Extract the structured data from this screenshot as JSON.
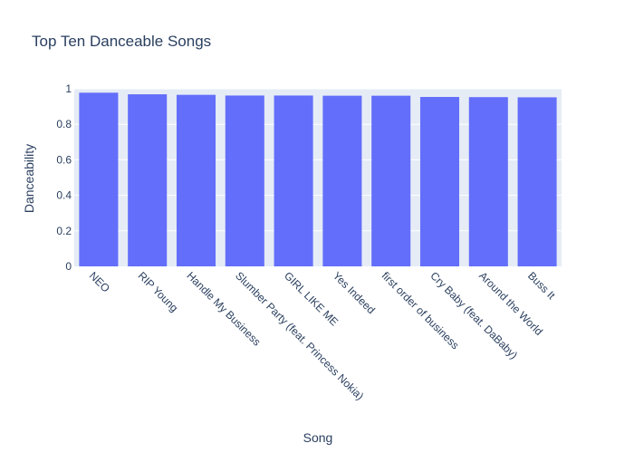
{
  "chart_data": {
    "type": "bar",
    "title": "Top Ten Danceable Songs",
    "xlabel": "Song",
    "ylabel": "Danceability",
    "ylim": [
      0,
      1
    ],
    "yticks": [
      0,
      0.2,
      0.4,
      0.6,
      0.8,
      1
    ],
    "ytick_labels": [
      "0",
      "0.2",
      "0.4",
      "0.6",
      "0.8",
      "1"
    ],
    "grid": true,
    "categories": [
      "NEO",
      "RIP Young",
      "Handle My Business",
      "Slumber Party (feat. Princess Nokia)",
      "GIRL LIKE ME",
      "Yes Indeed",
      "first order of business",
      "Cry Baby (feat. DaBaby)",
      "Around the World",
      "Buss It"
    ],
    "values": [
      0.978,
      0.969,
      0.966,
      0.962,
      0.962,
      0.961,
      0.961,
      0.954,
      0.953,
      0.952
    ],
    "colors": {
      "bar": "#636efa",
      "plot_background": "#e5ecf6",
      "grid": "#ffffff",
      "text": "#2a3f5f"
    }
  }
}
